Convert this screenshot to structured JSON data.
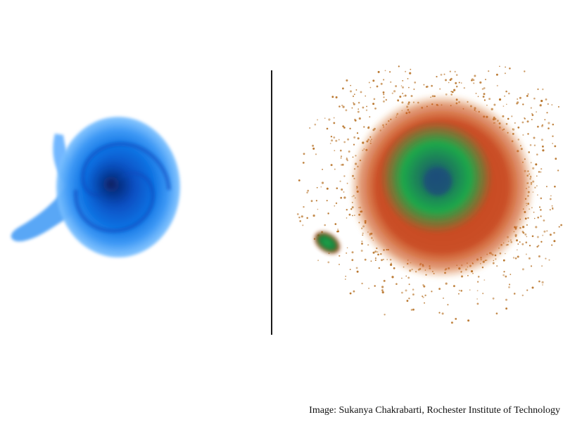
{
  "caption": {
    "credit": "Image: Sukanya Chakrabarti, Rochester Institute of Technology"
  },
  "left_simulation": {
    "subject": "gas disk simulation",
    "colors": {
      "core": "#0a2f8f",
      "mid": "#0a6fe0",
      "outer": "#5fb2ff"
    }
  },
  "right_simulation": {
    "subject": "stellar and dark matter particle simulation with satellite galaxy",
    "colors": {
      "core": "#1f4e7a",
      "inner": "#1ea84a",
      "halo": "#c43a0c",
      "particles": "#b8742a"
    }
  },
  "divider": {
    "color": "#1a1a1a"
  }
}
